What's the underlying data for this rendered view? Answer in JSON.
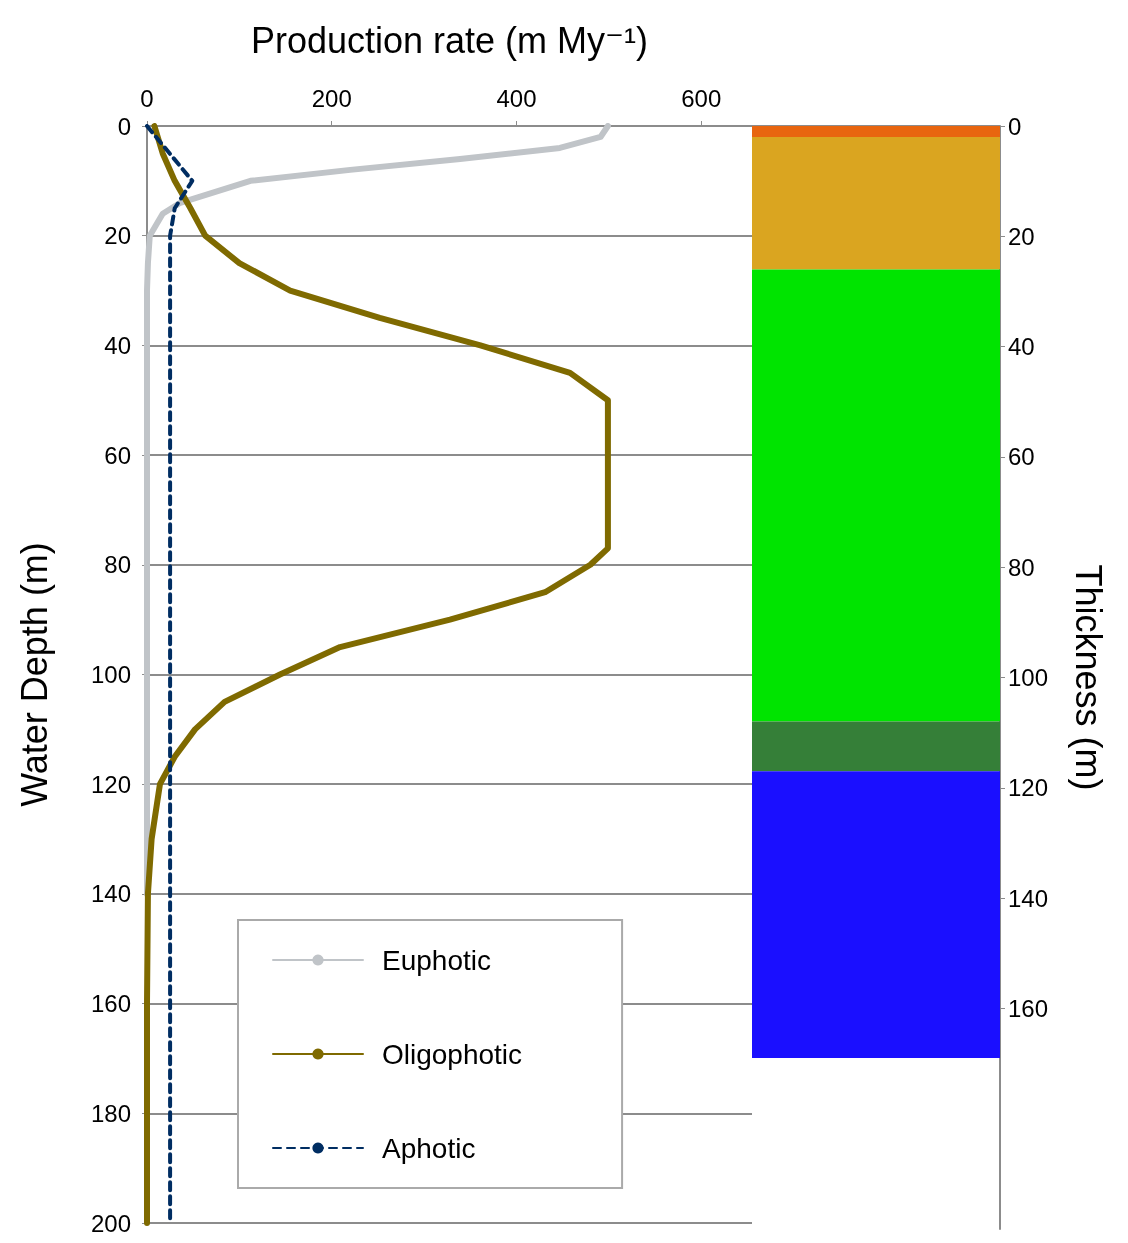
{
  "chart_data": [
    {
      "type": "line",
      "xlabel": "Production rate (m My⁻¹)",
      "ylabel": "Water Depth (m)",
      "xlim": [
        0,
        655
      ],
      "xticks": [
        0,
        200,
        400,
        600
      ],
      "ylim": [
        200,
        0
      ],
      "yticks": [
        0,
        20,
        40,
        60,
        80,
        100,
        120,
        140,
        160,
        180,
        200
      ],
      "grid": "y",
      "legend": "bottom left",
      "marker": "none",
      "series": [
        {
          "name": "Euphotic",
          "color": "#c0c4c8",
          "line_style": "solid",
          "x": [
            499,
            491,
            447,
            339,
            220,
            112,
            74,
            36,
            17,
            3,
            1,
            0,
            0
          ],
          "values": [
            0,
            2,
            4,
            6,
            8,
            10,
            12,
            14,
            16,
            20,
            25,
            30,
            140
          ]
        },
        {
          "name": "Oligophotic",
          "color": "#7f6a00",
          "line_style": "solid",
          "x": [
            8,
            17,
            30,
            47,
            63,
            100,
            155,
            252,
            361,
            458,
            499,
            499,
            480,
            431,
            328,
            209,
            144,
            84,
            52,
            30,
            14,
            5,
            1,
            0,
            0
          ],
          "values": [
            0,
            5,
            10,
            15,
            20,
            25,
            30,
            35,
            40,
            45,
            50,
            77,
            80,
            85,
            90,
            95,
            100,
            105,
            110,
            115,
            120,
            130,
            140,
            160,
            200
          ]
        },
        {
          "name": "Aphotic",
          "color": "#002d62",
          "line_style": "dashed",
          "x": [
            0,
            49,
            30,
            25,
            25
          ],
          "values": [
            0,
            10,
            15,
            20,
            200
          ]
        }
      ]
    },
    {
      "type": "bar",
      "stacked": true,
      "y2label": "Thickness (m)",
      "categories": [
        null
      ],
      "ylim": [
        200,
        0
      ],
      "yticks": [
        0,
        20,
        40,
        60,
        80,
        100,
        120,
        140,
        160
      ],
      "grid": "y",
      "tick_labels": "y",
      "series": [
        {
          "color": "#e8650f",
          "values": [
            2
          ]
        },
        {
          "color": "#daa520",
          "values": [
            24
          ]
        },
        {
          "color": "#00e400",
          "values": [
            82
          ]
        },
        {
          "color": "#357f38",
          "values": [
            9
          ]
        },
        {
          "color": "#1a0fff",
          "values": [
            52
          ]
        }
      ]
    }
  ]
}
